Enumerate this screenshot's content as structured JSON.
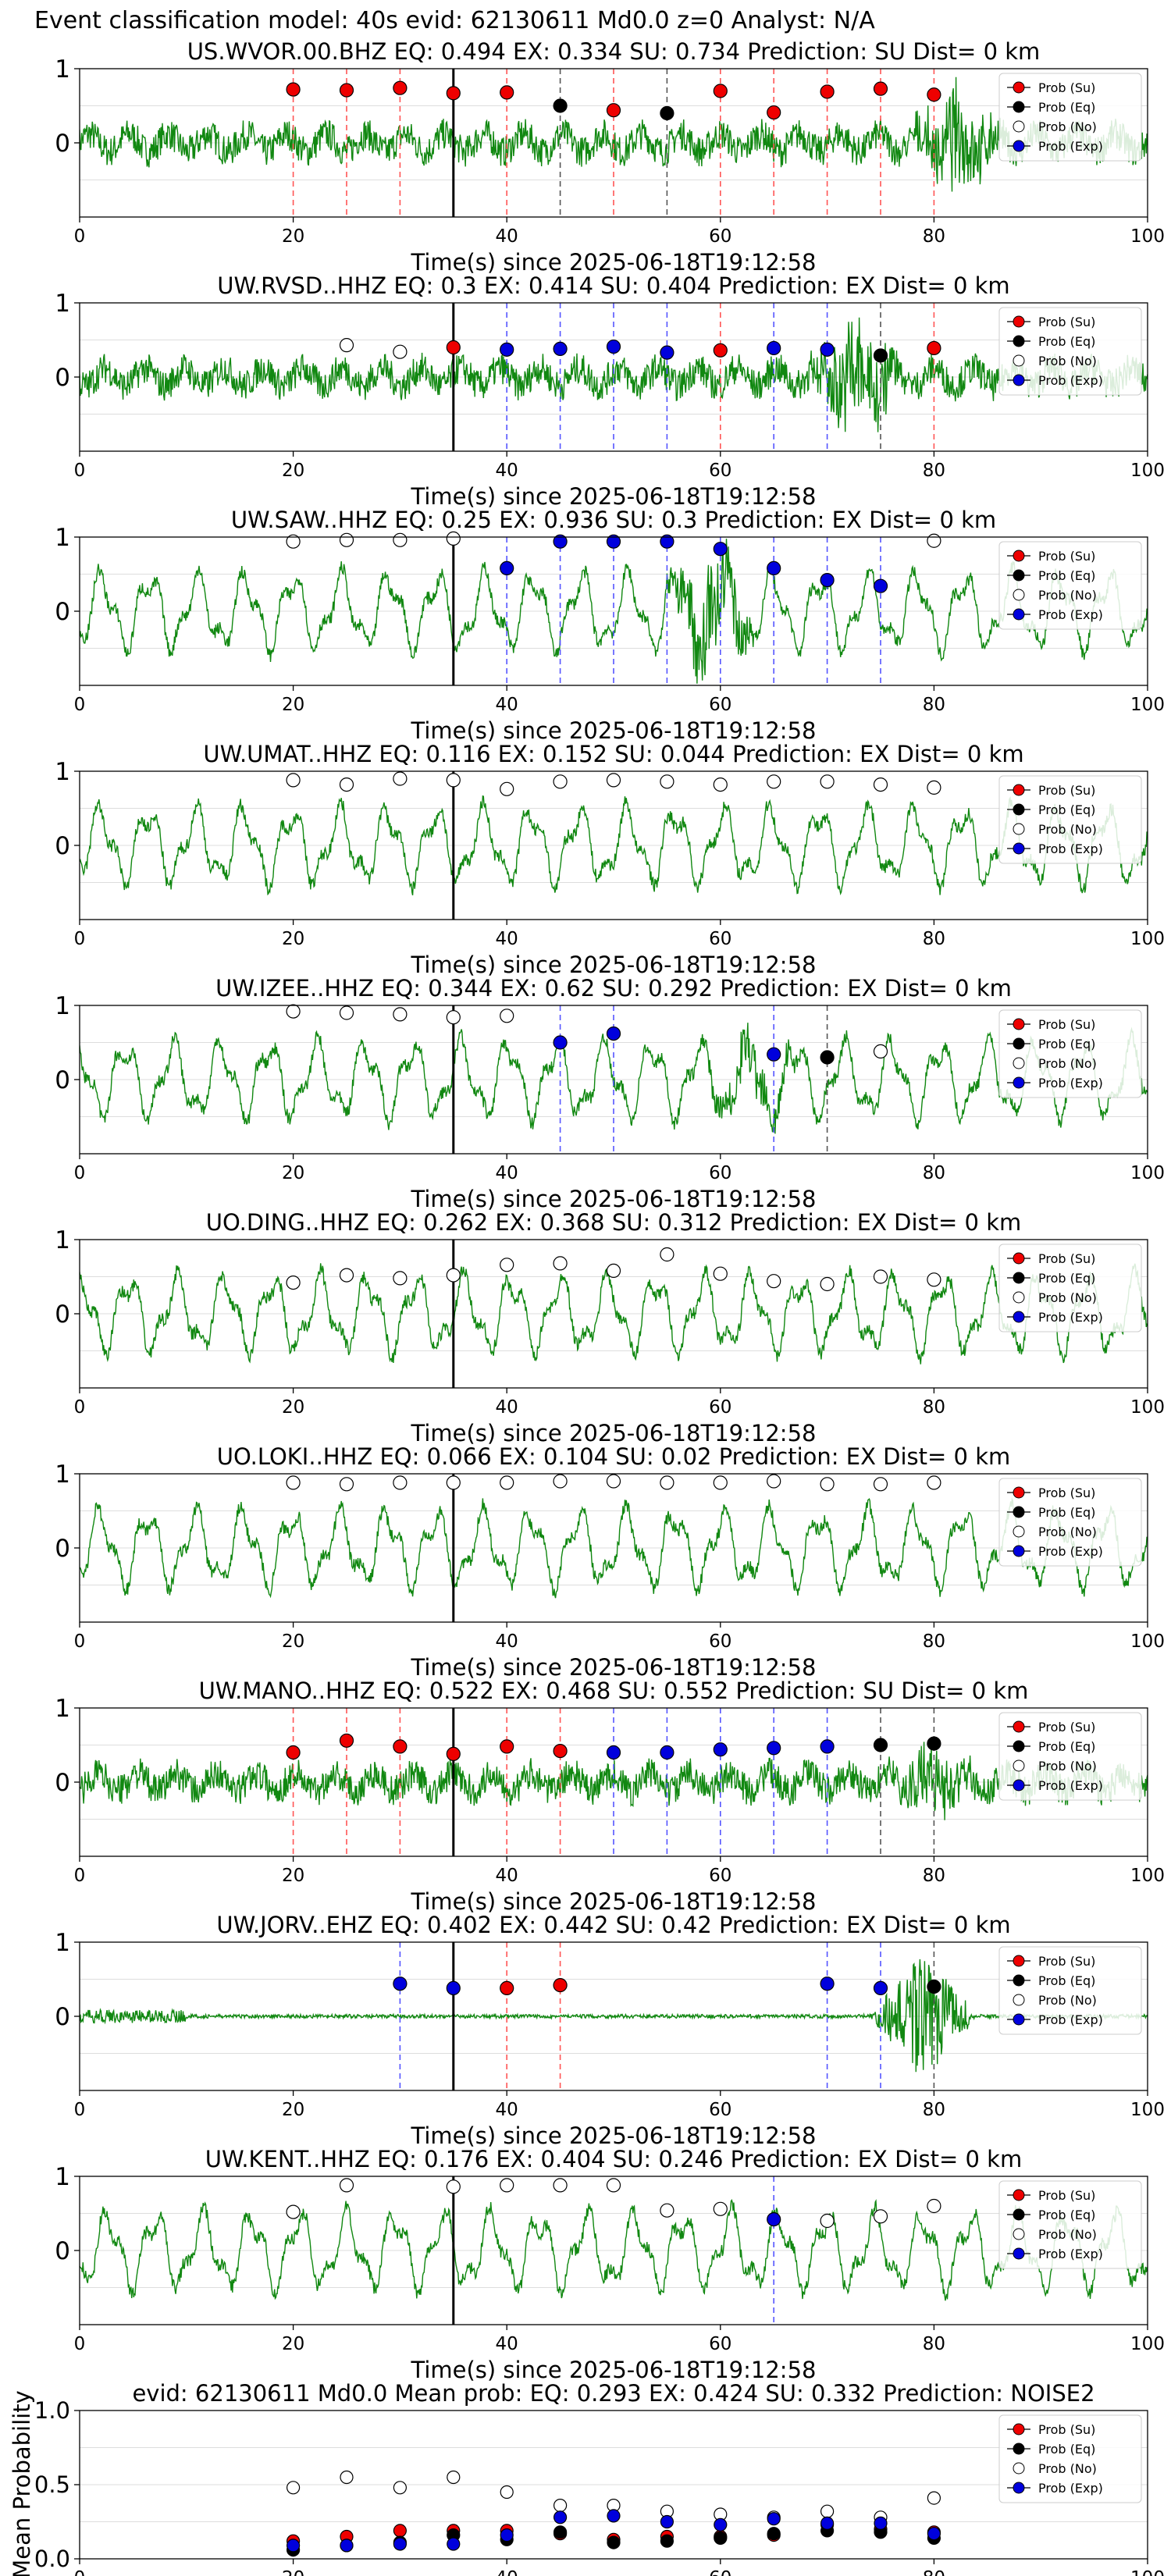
{
  "suptitle": "Event classification model: 40s evid: 62130611 Md0.0 z=0 Analyst: N/A",
  "xlabel": "Time(s) since 2025-06-18T19:12:58",
  "legend": [
    "Prob (Su)",
    "Prob (Eq)",
    "Prob (No)",
    "Prob (Exp)"
  ],
  "colors": {
    "su": "#ee0000",
    "eq": "#000000",
    "no": "#ffffff",
    "exp": "#0000dd",
    "trace": "#118811",
    "su_line": "#ff5555",
    "eq_line": "#555555",
    "exp_line": "#5555ff"
  },
  "xticks": [
    "0",
    "20",
    "40",
    "60",
    "80",
    "100"
  ],
  "yticks_trace": [
    "1",
    "0"
  ],
  "mean": {
    "title": "evid: 62130611  Md0.0  Mean prob:   EQ: 0.293  EX: 0.424  SU: 0.332   Prediction: NOISE2",
    "ylabel": "Mean Probability",
    "yticks": [
      "1.0",
      "0.5",
      "0.0"
    ]
  },
  "chart_data": [
    {
      "type": "scatter",
      "title": "US.WVOR.00.BHZ   EQ: 0.494  EX: 0.334  SU: 0.734   Prediction: SU    Dist= 0 km",
      "xlim": [
        0,
        100
      ],
      "ylim": [
        -1,
        1
      ],
      "xlabel": "Time(s) since 2025-06-18T19:12:58",
      "series": [
        {
          "name": "Prob (Su)",
          "points": [
            [
              20,
              0.72
            ],
            [
              25,
              0.71
            ],
            [
              30,
              0.74
            ],
            [
              35,
              0.67
            ],
            [
              40,
              0.68
            ],
            [
              50,
              0.44
            ],
            [
              60,
              0.7
            ],
            [
              65,
              0.41
            ],
            [
              70,
              0.69
            ],
            [
              75,
              0.73
            ],
            [
              80,
              0.65
            ]
          ]
        },
        {
          "name": "Prob (Eq)",
          "points": [
            [
              45,
              0.5
            ],
            [
              55,
              0.4
            ]
          ]
        },
        {
          "name": "Prob (No)",
          "points": []
        },
        {
          "name": "Prob (Exp)",
          "points": []
        }
      ]
    },
    {
      "type": "scatter",
      "title": "UW.RVSD..HHZ   EQ: 0.3  EX: 0.414  SU: 0.404   Prediction: EX    Dist= 0 km",
      "xlim": [
        0,
        100
      ],
      "ylim": [
        -1,
        1
      ],
      "xlabel": "Time(s) since 2025-06-18T19:12:58",
      "series": [
        {
          "name": "Prob (Su)",
          "points": [
            [
              35,
              0.4
            ],
            [
              60,
              0.36
            ],
            [
              80,
              0.39
            ]
          ]
        },
        {
          "name": "Prob (Eq)",
          "points": [
            [
              75,
              0.29
            ]
          ]
        },
        {
          "name": "Prob (No)",
          "points": [
            [
              25,
              0.43
            ],
            [
              30,
              0.34
            ]
          ]
        },
        {
          "name": "Prob (Exp)",
          "points": [
            [
              40,
              0.37
            ],
            [
              45,
              0.38
            ],
            [
              50,
              0.41
            ],
            [
              55,
              0.33
            ],
            [
              65,
              0.39
            ],
            [
              70,
              0.37
            ]
          ]
        }
      ]
    },
    {
      "type": "scatter",
      "title": "UW.SAW..HHZ   EQ: 0.25  EX: 0.936  SU: 0.3   Prediction: EX    Dist= 0 km",
      "xlim": [
        0,
        100
      ],
      "ylim": [
        -1,
        1
      ],
      "xlabel": "Time(s) since 2025-06-18T19:12:58",
      "series": [
        {
          "name": "Prob (Su)",
          "points": []
        },
        {
          "name": "Prob (Eq)",
          "points": []
        },
        {
          "name": "Prob (No)",
          "points": [
            [
              20,
              0.94
            ],
            [
              25,
              0.96
            ],
            [
              30,
              0.96
            ],
            [
              35,
              0.98
            ],
            [
              80,
              0.95
            ]
          ]
        },
        {
          "name": "Prob (Exp)",
          "points": [
            [
              40,
              0.58
            ],
            [
              45,
              0.94
            ],
            [
              50,
              0.94
            ],
            [
              55,
              0.94
            ],
            [
              60,
              0.84
            ],
            [
              65,
              0.58
            ],
            [
              70,
              0.42
            ],
            [
              75,
              0.34
            ]
          ]
        }
      ]
    },
    {
      "type": "scatter",
      "title": "UW.UMAT..HHZ   EQ: 0.116  EX: 0.152  SU: 0.044   Prediction: EX    Dist= 0 km",
      "xlim": [
        0,
        100
      ],
      "ylim": [
        -1,
        1
      ],
      "xlabel": "Time(s) since 2025-06-18T19:12:58",
      "series": [
        {
          "name": "Prob (Su)",
          "points": []
        },
        {
          "name": "Prob (Eq)",
          "points": []
        },
        {
          "name": "Prob (No)",
          "points": [
            [
              20,
              0.88
            ],
            [
              25,
              0.82
            ],
            [
              30,
              0.9
            ],
            [
              35,
              0.88
            ],
            [
              40,
              0.76
            ],
            [
              45,
              0.86
            ],
            [
              50,
              0.88
            ],
            [
              55,
              0.86
            ],
            [
              60,
              0.82
            ],
            [
              65,
              0.86
            ],
            [
              70,
              0.86
            ],
            [
              75,
              0.82
            ],
            [
              80,
              0.78
            ]
          ]
        },
        {
          "name": "Prob (Exp)",
          "points": []
        }
      ]
    },
    {
      "type": "scatter",
      "title": "UW.IZEE..HHZ   EQ: 0.344  EX: 0.62  SU: 0.292   Prediction: EX    Dist= 0 km",
      "xlim": [
        0,
        100
      ],
      "ylim": [
        -1,
        1
      ],
      "xlabel": "Time(s) since 2025-06-18T19:12:58",
      "series": [
        {
          "name": "Prob (Su)",
          "points": []
        },
        {
          "name": "Prob (Eq)",
          "points": [
            [
              70,
              0.3
            ]
          ]
        },
        {
          "name": "Prob (No)",
          "points": [
            [
              20,
              0.92
            ],
            [
              25,
              0.9
            ],
            [
              30,
              0.88
            ],
            [
              35,
              0.84
            ],
            [
              40,
              0.86
            ],
            [
              75,
              0.38
            ]
          ]
        },
        {
          "name": "Prob (Exp)",
          "points": [
            [
              45,
              0.5
            ],
            [
              50,
              0.62
            ],
            [
              65,
              0.34
            ]
          ]
        }
      ]
    },
    {
      "type": "scatter",
      "title": "UO.DING..HHZ   EQ: 0.262  EX: 0.368  SU: 0.312   Prediction: EX    Dist= 0 km",
      "xlim": [
        0,
        100
      ],
      "ylim": [
        -1,
        1
      ],
      "xlabel": "Time(s) since 2025-06-18T19:12:58",
      "series": [
        {
          "name": "Prob (Su)",
          "points": []
        },
        {
          "name": "Prob (Eq)",
          "points": []
        },
        {
          "name": "Prob (No)",
          "points": [
            [
              20,
              0.42
            ],
            [
              25,
              0.52
            ],
            [
              30,
              0.48
            ],
            [
              35,
              0.52
            ],
            [
              40,
              0.66
            ],
            [
              45,
              0.68
            ],
            [
              50,
              0.58
            ],
            [
              55,
              0.8
            ],
            [
              60,
              0.54
            ],
            [
              65,
              0.44
            ],
            [
              70,
              0.4
            ],
            [
              75,
              0.5
            ],
            [
              80,
              0.46
            ]
          ]
        },
        {
          "name": "Prob (Exp)",
          "points": []
        }
      ]
    },
    {
      "type": "scatter",
      "title": "UO.LOKI..HHZ   EQ: 0.066  EX: 0.104  SU: 0.02   Prediction: EX    Dist= 0 km",
      "xlim": [
        0,
        100
      ],
      "ylim": [
        -1,
        1
      ],
      "xlabel": "Time(s) since 2025-06-18T19:12:58",
      "series": [
        {
          "name": "Prob (Su)",
          "points": []
        },
        {
          "name": "Prob (Eq)",
          "points": []
        },
        {
          "name": "Prob (No)",
          "points": [
            [
              20,
              0.88
            ],
            [
              25,
              0.86
            ],
            [
              30,
              0.88
            ],
            [
              35,
              0.88
            ],
            [
              40,
              0.88
            ],
            [
              45,
              0.9
            ],
            [
              50,
              0.9
            ],
            [
              55,
              0.88
            ],
            [
              60,
              0.88
            ],
            [
              65,
              0.9
            ],
            [
              70,
              0.86
            ],
            [
              75,
              0.86
            ],
            [
              80,
              0.88
            ]
          ]
        },
        {
          "name": "Prob (Exp)",
          "points": []
        }
      ]
    },
    {
      "type": "scatter",
      "title": "UW.MANO..HHZ   EQ: 0.522  EX: 0.468  SU: 0.552   Prediction: SU    Dist= 0 km",
      "xlim": [
        0,
        100
      ],
      "ylim": [
        -1,
        1
      ],
      "xlabel": "Time(s) since 2025-06-18T19:12:58",
      "series": [
        {
          "name": "Prob (Su)",
          "points": [
            [
              20,
              0.4
            ],
            [
              25,
              0.56
            ],
            [
              30,
              0.48
            ],
            [
              35,
              0.38
            ],
            [
              40,
              0.48
            ],
            [
              45,
              0.42
            ]
          ]
        },
        {
          "name": "Prob (Eq)",
          "points": [
            [
              75,
              0.5
            ],
            [
              80,
              0.52
            ]
          ]
        },
        {
          "name": "Prob (No)",
          "points": []
        },
        {
          "name": "Prob (Exp)",
          "points": [
            [
              50,
              0.4
            ],
            [
              55,
              0.4
            ],
            [
              60,
              0.44
            ],
            [
              65,
              0.46
            ],
            [
              70,
              0.48
            ]
          ]
        }
      ]
    },
    {
      "type": "scatter",
      "title": "UW.JORV..EHZ   EQ: 0.402  EX: 0.442  SU: 0.42   Prediction: EX    Dist= 0 km",
      "xlim": [
        0,
        100
      ],
      "ylim": [
        -1,
        1
      ],
      "xlabel": "Time(s) since 2025-06-18T19:12:58",
      "series": [
        {
          "name": "Prob (Su)",
          "points": [
            [
              40,
              0.38
            ],
            [
              45,
              0.42
            ]
          ]
        },
        {
          "name": "Prob (Eq)",
          "points": [
            [
              80,
              0.4
            ]
          ]
        },
        {
          "name": "Prob (No)",
          "points": []
        },
        {
          "name": "Prob (Exp)",
          "points": [
            [
              30,
              0.44
            ],
            [
              35,
              0.38
            ],
            [
              70,
              0.44
            ],
            [
              75,
              0.38
            ]
          ]
        }
      ]
    },
    {
      "type": "scatter",
      "title": "UW.KENT..HHZ   EQ: 0.176  EX: 0.404  SU: 0.246   Prediction: EX    Dist= 0 km",
      "xlim": [
        0,
        100
      ],
      "ylim": [
        -1,
        1
      ],
      "xlabel": "Time(s) since 2025-06-18T19:12:58",
      "series": [
        {
          "name": "Prob (Su)",
          "points": []
        },
        {
          "name": "Prob (Eq)",
          "points": []
        },
        {
          "name": "Prob (No)",
          "points": [
            [
              20,
              0.52
            ],
            [
              25,
              0.88
            ],
            [
              35,
              0.86
            ],
            [
              40,
              0.88
            ],
            [
              45,
              0.88
            ],
            [
              50,
              0.88
            ],
            [
              55,
              0.54
            ],
            [
              60,
              0.56
            ],
            [
              70,
              0.4
            ],
            [
              75,
              0.46
            ],
            [
              80,
              0.6
            ]
          ]
        },
        {
          "name": "Prob (Exp)",
          "points": [
            [
              65,
              0.42
            ]
          ]
        }
      ]
    },
    {
      "type": "scatter",
      "title": "evid: 62130611  Md0.0  Mean prob:   EQ: 0.293  EX: 0.424  SU: 0.332   Prediction: NOISE2",
      "xlim": [
        0,
        100
      ],
      "ylim": [
        0,
        1
      ],
      "ylabel": "Mean Probability",
      "series": [
        {
          "name": "Prob (Su)",
          "points": [
            [
              20,
              0.12
            ],
            [
              25,
              0.15
            ],
            [
              30,
              0.19
            ],
            [
              35,
              0.19
            ],
            [
              40,
              0.19
            ],
            [
              45,
              0.17
            ],
            [
              50,
              0.13
            ],
            [
              55,
              0.15
            ],
            [
              60,
              0.15
            ],
            [
              65,
              0.16
            ],
            [
              70,
              0.23
            ],
            [
              75,
              0.2
            ],
            [
              80,
              0.18
            ]
          ]
        },
        {
          "name": "Prob (Eq)",
          "points": [
            [
              20,
              0.06
            ],
            [
              25,
              0.09
            ],
            [
              30,
              0.11
            ],
            [
              35,
              0.16
            ],
            [
              40,
              0.13
            ],
            [
              45,
              0.18
            ],
            [
              50,
              0.11
            ],
            [
              55,
              0.12
            ],
            [
              60,
              0.14
            ],
            [
              65,
              0.17
            ],
            [
              70,
              0.19
            ],
            [
              75,
              0.18
            ],
            [
              80,
              0.14
            ]
          ]
        },
        {
          "name": "Prob (No)",
          "points": [
            [
              20,
              0.48
            ],
            [
              25,
              0.55
            ],
            [
              30,
              0.48
            ],
            [
              35,
              0.55
            ],
            [
              40,
              0.45
            ],
            [
              45,
              0.36
            ],
            [
              50,
              0.36
            ],
            [
              55,
              0.32
            ],
            [
              60,
              0.3
            ],
            [
              65,
              0.28
            ],
            [
              70,
              0.32
            ],
            [
              75,
              0.28
            ],
            [
              80,
              0.41
            ]
          ]
        },
        {
          "name": "Prob (Exp)",
          "points": [
            [
              20,
              0.09
            ],
            [
              25,
              0.09
            ],
            [
              30,
              0.1
            ],
            [
              35,
              0.1
            ],
            [
              40,
              0.16
            ],
            [
              45,
              0.28
            ],
            [
              50,
              0.29
            ],
            [
              55,
              0.25
            ],
            [
              60,
              0.23
            ],
            [
              65,
              0.27
            ],
            [
              70,
              0.24
            ],
            [
              75,
              0.24
            ],
            [
              80,
              0.17
            ]
          ]
        }
      ]
    }
  ]
}
